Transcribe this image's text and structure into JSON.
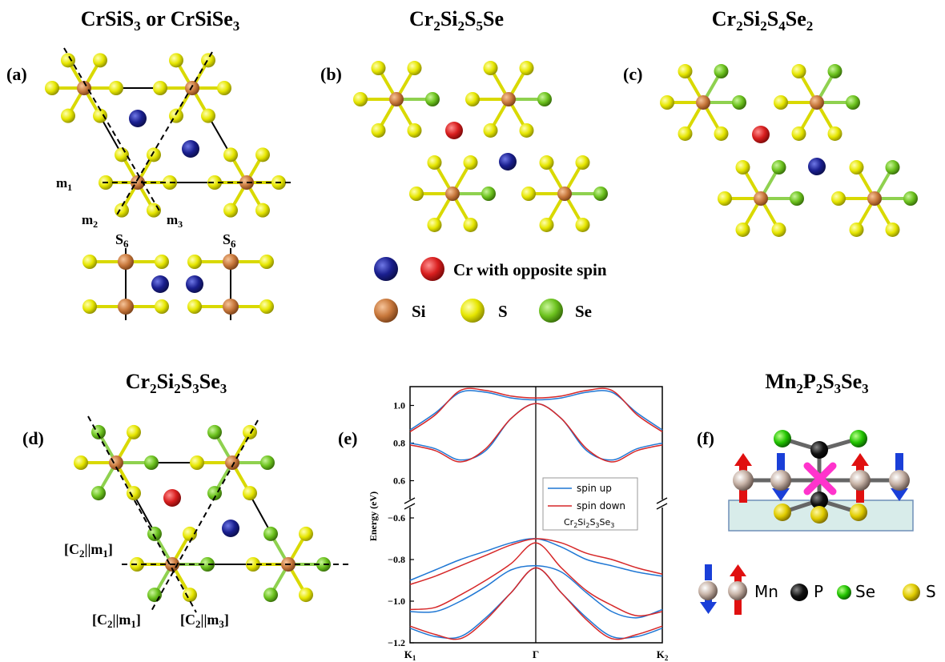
{
  "panels": {
    "a": {
      "label": "(a)",
      "title_main": "CrSiS",
      "title_sub1": "3",
      "title_mid": " or CrSiSe",
      "title_sub2": "3",
      "m1": "m",
      "m1_sub": "1",
      "m2": "m",
      "m2_sub": "2",
      "m3": "m",
      "m3_sub": "3",
      "s6_left": "S",
      "s6_left_sub": "6",
      "s6_right": "S",
      "s6_right_sub": "6"
    },
    "b": {
      "label": "(b)",
      "title_parts": [
        "Cr",
        "2",
        "Si",
        "2",
        "S",
        "5",
        "Se",
        ""
      ]
    },
    "c": {
      "label": "(c)",
      "title_parts": [
        "Cr",
        "2",
        "Si",
        "2",
        "S",
        "4",
        "Se",
        "2"
      ]
    },
    "d": {
      "label": "(d)",
      "title_parts": [
        "Cr",
        "2",
        "Si",
        "2",
        "S",
        "3",
        "Se",
        "3"
      ],
      "op1_pre": "[C",
      "op1_sub": "2",
      "op1_mid": "||m",
      "op1_sub2": "1",
      "op1_post": "]",
      "op2_pre": "[C",
      "op2_sub": "2",
      "op2_mid": "||m",
      "op2_sub2": "1",
      "op2_post": "]",
      "op3_pre": "[C",
      "op3_sub": "2",
      "op3_mid": "||m",
      "op3_sub2": "3",
      "op3_post": "]"
    },
    "e": {
      "label": "(e)",
      "ylabel": "Energy (eV)",
      "xticks": [
        "K",
        "Γ",
        "K"
      ],
      "xtick_subs": [
        "1",
        "",
        "2"
      ],
      "legend_up": "spin up",
      "legend_down": "spin down",
      "legend_formula": [
        "Cr",
        "2",
        "Si",
        "2",
        "S",
        "3",
        "Se",
        "3"
      ]
    },
    "f": {
      "label": "(f)",
      "title_parts": [
        "Mn",
        "2",
        "P",
        "2",
        "S",
        "3",
        "Se",
        "3"
      ],
      "legend_mn": "Mn",
      "legend_p": "P",
      "legend_se": "Se",
      "legend_s": "S"
    }
  },
  "atom_legend": {
    "cr_text": "Cr with opposite spin",
    "si_text": "Si",
    "s_text": "S",
    "se_text": "Se"
  },
  "colors": {
    "cr_blue": "#1a1f8f",
    "cr_red": "#d81e1e",
    "si": "#c8783c",
    "s": "#e6e600",
    "se": "#6cc21e",
    "spin_up": "#1f77d4",
    "spin_down": "#d62728",
    "mn": "#c8b4a8",
    "p": "#111111",
    "substrate": "#d8ecea",
    "cross": "#ff33cc"
  },
  "chart_data": {
    "type": "line",
    "title": "",
    "xlabel": "",
    "ylabel": "Energy (eV)",
    "xticks": [
      "K1",
      "Γ",
      "K2"
    ],
    "upper_ylim": [
      0.5,
      1.1
    ],
    "upper_yticks": [
      0.6,
      0.8,
      1.0
    ],
    "lower_ylim": [
      -1.2,
      -0.55
    ],
    "lower_yticks": [
      -1.2,
      -1.0,
      -0.8,
      -0.6
    ],
    "x": [
      0.0,
      0.1,
      0.2,
      0.3,
      0.4,
      0.5,
      0.6,
      0.7,
      0.8,
      0.9,
      1.0
    ],
    "series": [
      {
        "name": "spin up",
        "band": "c1",
        "values": [
          0.8,
          0.77,
          0.71,
          0.76,
          0.93,
          1.01,
          0.93,
          0.76,
          0.71,
          0.77,
          0.8
        ]
      },
      {
        "name": "spin up",
        "band": "c2",
        "values": [
          0.87,
          0.96,
          1.07,
          1.07,
          1.04,
          1.03,
          1.04,
          1.07,
          1.07,
          0.96,
          0.87
        ]
      },
      {
        "name": "spin down",
        "band": "c1",
        "values": [
          0.79,
          0.76,
          0.7,
          0.77,
          0.93,
          1.01,
          0.93,
          0.77,
          0.7,
          0.76,
          0.79
        ]
      },
      {
        "name": "spin down",
        "band": "c2",
        "values": [
          0.86,
          0.95,
          1.08,
          1.08,
          1.05,
          1.04,
          1.05,
          1.08,
          1.08,
          0.95,
          0.86
        ]
      },
      {
        "name": "spin up",
        "band": "v1",
        "values": [
          -0.9,
          -0.85,
          -0.8,
          -0.76,
          -0.72,
          -0.7,
          -0.74,
          -0.8,
          -0.83,
          -0.86,
          -0.88
        ]
      },
      {
        "name": "spin up",
        "band": "v2",
        "values": [
          -1.05,
          -1.05,
          -1.0,
          -0.93,
          -0.85,
          -0.83,
          -0.86,
          -0.96,
          -1.05,
          -1.08,
          -1.04
        ]
      },
      {
        "name": "spin up",
        "band": "v3",
        "values": [
          -1.13,
          -1.17,
          -1.17,
          -1.08,
          -0.96,
          -0.84,
          -0.96,
          -1.08,
          -1.17,
          -1.17,
          -1.13
        ]
      },
      {
        "name": "spin down",
        "band": "v1",
        "values": [
          -0.92,
          -0.88,
          -0.83,
          -0.78,
          -0.73,
          -0.7,
          -0.72,
          -0.77,
          -0.8,
          -0.84,
          -0.87
        ]
      },
      {
        "name": "spin down",
        "band": "v2",
        "values": [
          -1.04,
          -1.03,
          -0.97,
          -0.9,
          -0.82,
          -0.72,
          -0.84,
          -0.95,
          -1.02,
          -1.07,
          -1.05
        ]
      },
      {
        "name": "spin down",
        "band": "v3",
        "values": [
          -1.12,
          -1.16,
          -1.18,
          -1.09,
          -0.96,
          -0.84,
          -0.96,
          -1.09,
          -1.18,
          -1.16,
          -1.12
        ]
      }
    ],
    "legend": "upper-right"
  }
}
